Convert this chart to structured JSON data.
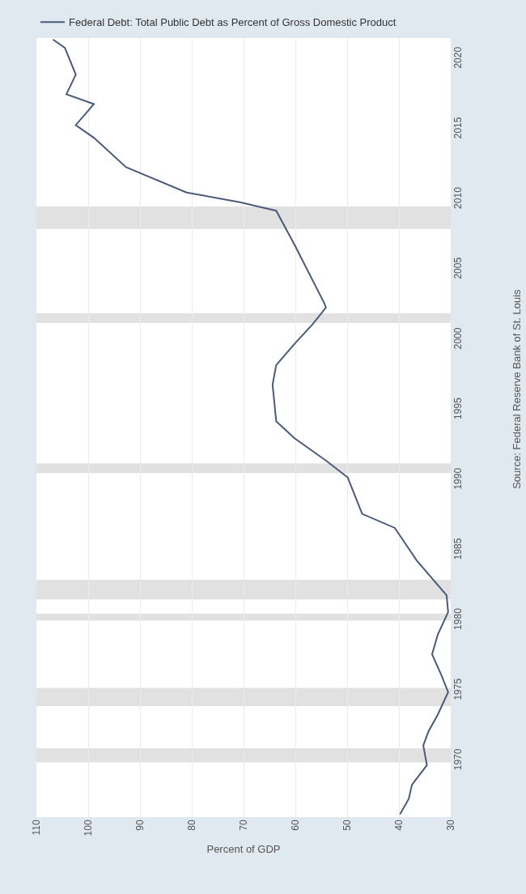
{
  "chart_data": {
    "type": "line",
    "orientation": "horizontal",
    "xlabel": "Percent of GDP",
    "annotations": [
      "Source: Federal Reserve Bank of St. Louis"
    ],
    "x": [
      1966.2,
      1967.3,
      1968.3,
      1969.7,
      1971.1,
      1972.1,
      1973.3,
      1974.9,
      1976.1,
      1977.6,
      1979.0,
      1980.6,
      1981.8,
      1984.3,
      1986.6,
      1987.6,
      1990.2,
      1991.4,
      1993.0,
      1994.2,
      1996.8,
      1998.2,
      1999.7,
      2001.1,
      2002.3,
      2002.6,
      2006.8,
      2009.2,
      2009.8,
      2010.5,
      2012.3,
      2014.4,
      2015.3,
      2016.8,
      2017.5,
      2018.9,
      2020.8,
      2021.4
    ],
    "series": [
      {
        "name": "Federal Debt: Total Public Debt as Percent of Gross Domestic Product",
        "color": "#4a5a78",
        "values": [
          39.8,
          38.1,
          37.5,
          34.6,
          35.3,
          34.3,
          32.5,
          30.5,
          31.8,
          33.6,
          32.5,
          30.5,
          30.8,
          36.6,
          40.8,
          47.1,
          49.9,
          54.1,
          60.2,
          63.7,
          64.4,
          63.7,
          60.2,
          56.7,
          54.1,
          54.4,
          60.2,
          63.7,
          70.7,
          81.0,
          92.7,
          98.9,
          102.4,
          98.9,
          104.2,
          102.4,
          104.5,
          106.8
        ]
      }
    ],
    "ylim": [
      1966,
      2021.5
    ],
    "yticks": [
      1970,
      1975,
      1980,
      1985,
      1990,
      1995,
      2000,
      2005,
      2010,
      2015,
      2020
    ],
    "xlim": [
      110,
      30
    ],
    "xticks": [
      110,
      100,
      90,
      80,
      70,
      60,
      50,
      40,
      30
    ],
    "bands": [
      {
        "axis": "y",
        "from": 1969.9,
        "to": 1970.9,
        "color": "#e1e1e1"
      },
      {
        "axis": "y",
        "from": 1973.9,
        "to": 1975.2,
        "color": "#e1e1e1"
      },
      {
        "axis": "y",
        "from": 1980.0,
        "to": 1980.5,
        "color": "#e1e1e1"
      },
      {
        "axis": "y",
        "from": 1981.5,
        "to": 1982.9,
        "color": "#e1e1e1"
      },
      {
        "axis": "y",
        "from": 1990.5,
        "to": 1991.2,
        "color": "#e1e1e1"
      },
      {
        "axis": "y",
        "from": 2001.2,
        "to": 2001.9,
        "color": "#e1e1e1"
      },
      {
        "axis": "y",
        "from": 2007.9,
        "to": 2009.5,
        "color": "#e1e1e1"
      }
    ],
    "grid": "x",
    "legend": "top left",
    "marker": "none",
    "line_style": "solid"
  }
}
